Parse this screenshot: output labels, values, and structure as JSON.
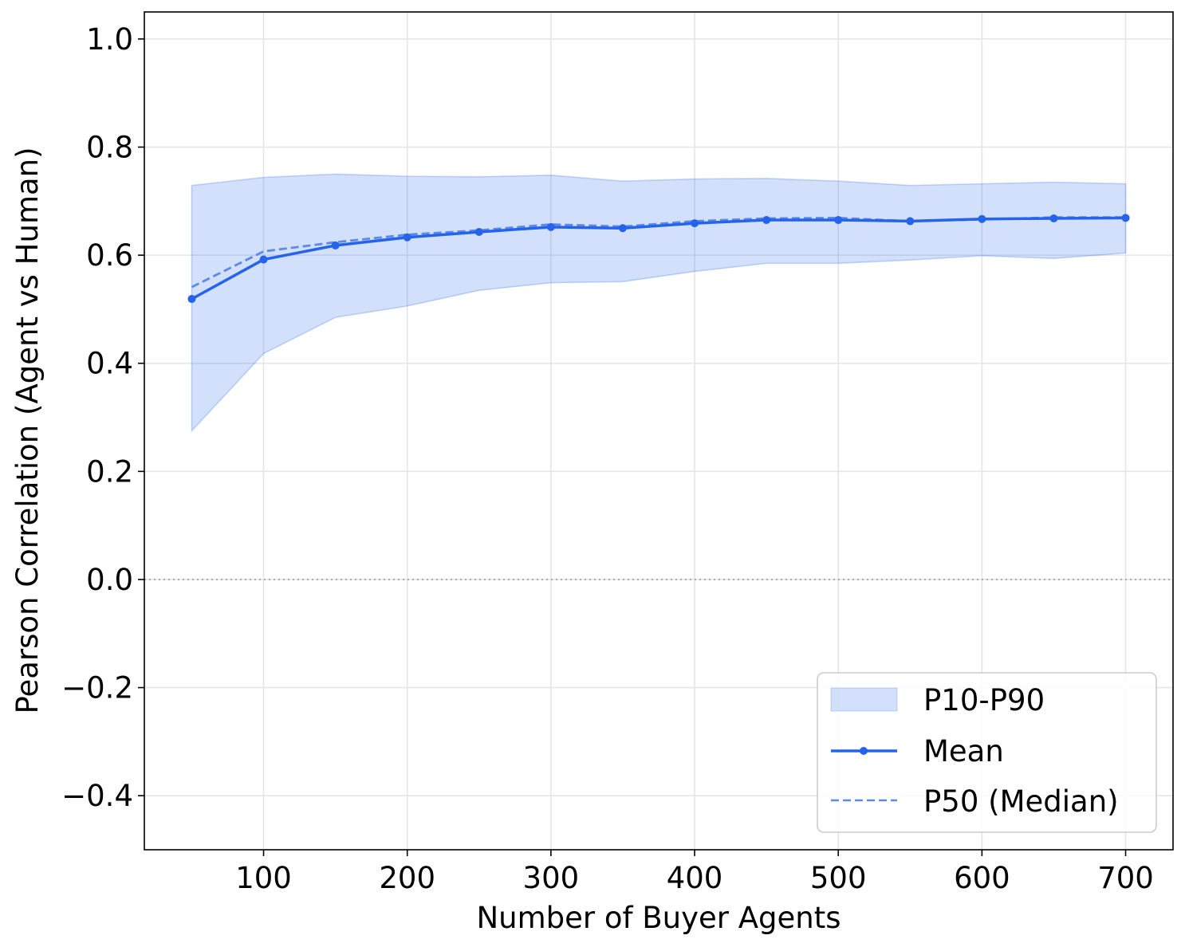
{
  "chart_data": {
    "type": "line",
    "title": "",
    "xlabel": "Number of Buyer Agents",
    "ylabel": "Pearson Correlation (Agent vs Human)",
    "xlim": [
      17,
      733
    ],
    "ylim": [
      -0.5,
      1.05
    ],
    "xticks": [
      100,
      200,
      300,
      400,
      500,
      600,
      700
    ],
    "xtick_labels": [
      "100",
      "200",
      "300",
      "400",
      "500",
      "600",
      "700"
    ],
    "yticks": [
      -0.4,
      -0.2,
      0.0,
      0.2,
      0.4,
      0.6,
      0.8,
      1.0
    ],
    "ytick_labels": [
      "−0.4",
      "−0.2",
      "0.0",
      "0.2",
      "0.4",
      "0.6",
      "0.8",
      "1.0"
    ],
    "grid": true,
    "reference_line": 0.0,
    "legend_position": "lower-right",
    "x": [
      50,
      100,
      150,
      200,
      250,
      300,
      350,
      400,
      450,
      500,
      550,
      600,
      650,
      700
    ],
    "series": [
      {
        "name": "P10-P90",
        "kind": "band",
        "color": "#2563eb",
        "lower": [
          0.275,
          0.418,
          0.485,
          0.506,
          0.535,
          0.549,
          0.551,
          0.57,
          0.585,
          0.585,
          0.591,
          0.599,
          0.594,
          0.604
        ],
        "upper": [
          0.729,
          0.744,
          0.75,
          0.746,
          0.745,
          0.748,
          0.737,
          0.741,
          0.742,
          0.737,
          0.729,
          0.732,
          0.735,
          0.732
        ]
      },
      {
        "name": "Mean",
        "kind": "line-markers",
        "color": "#2563eb",
        "values": [
          0.519,
          0.592,
          0.618,
          0.633,
          0.643,
          0.652,
          0.65,
          0.659,
          0.665,
          0.665,
          0.663,
          0.667,
          0.668,
          0.669
        ]
      },
      {
        "name": "P50 (Median)",
        "kind": "dashed-line",
        "color": "#5b8ae8",
        "values": [
          0.541,
          0.607,
          0.624,
          0.638,
          0.646,
          0.657,
          0.653,
          0.663,
          0.668,
          0.669,
          0.663,
          0.666,
          0.67,
          0.67
        ]
      }
    ]
  }
}
